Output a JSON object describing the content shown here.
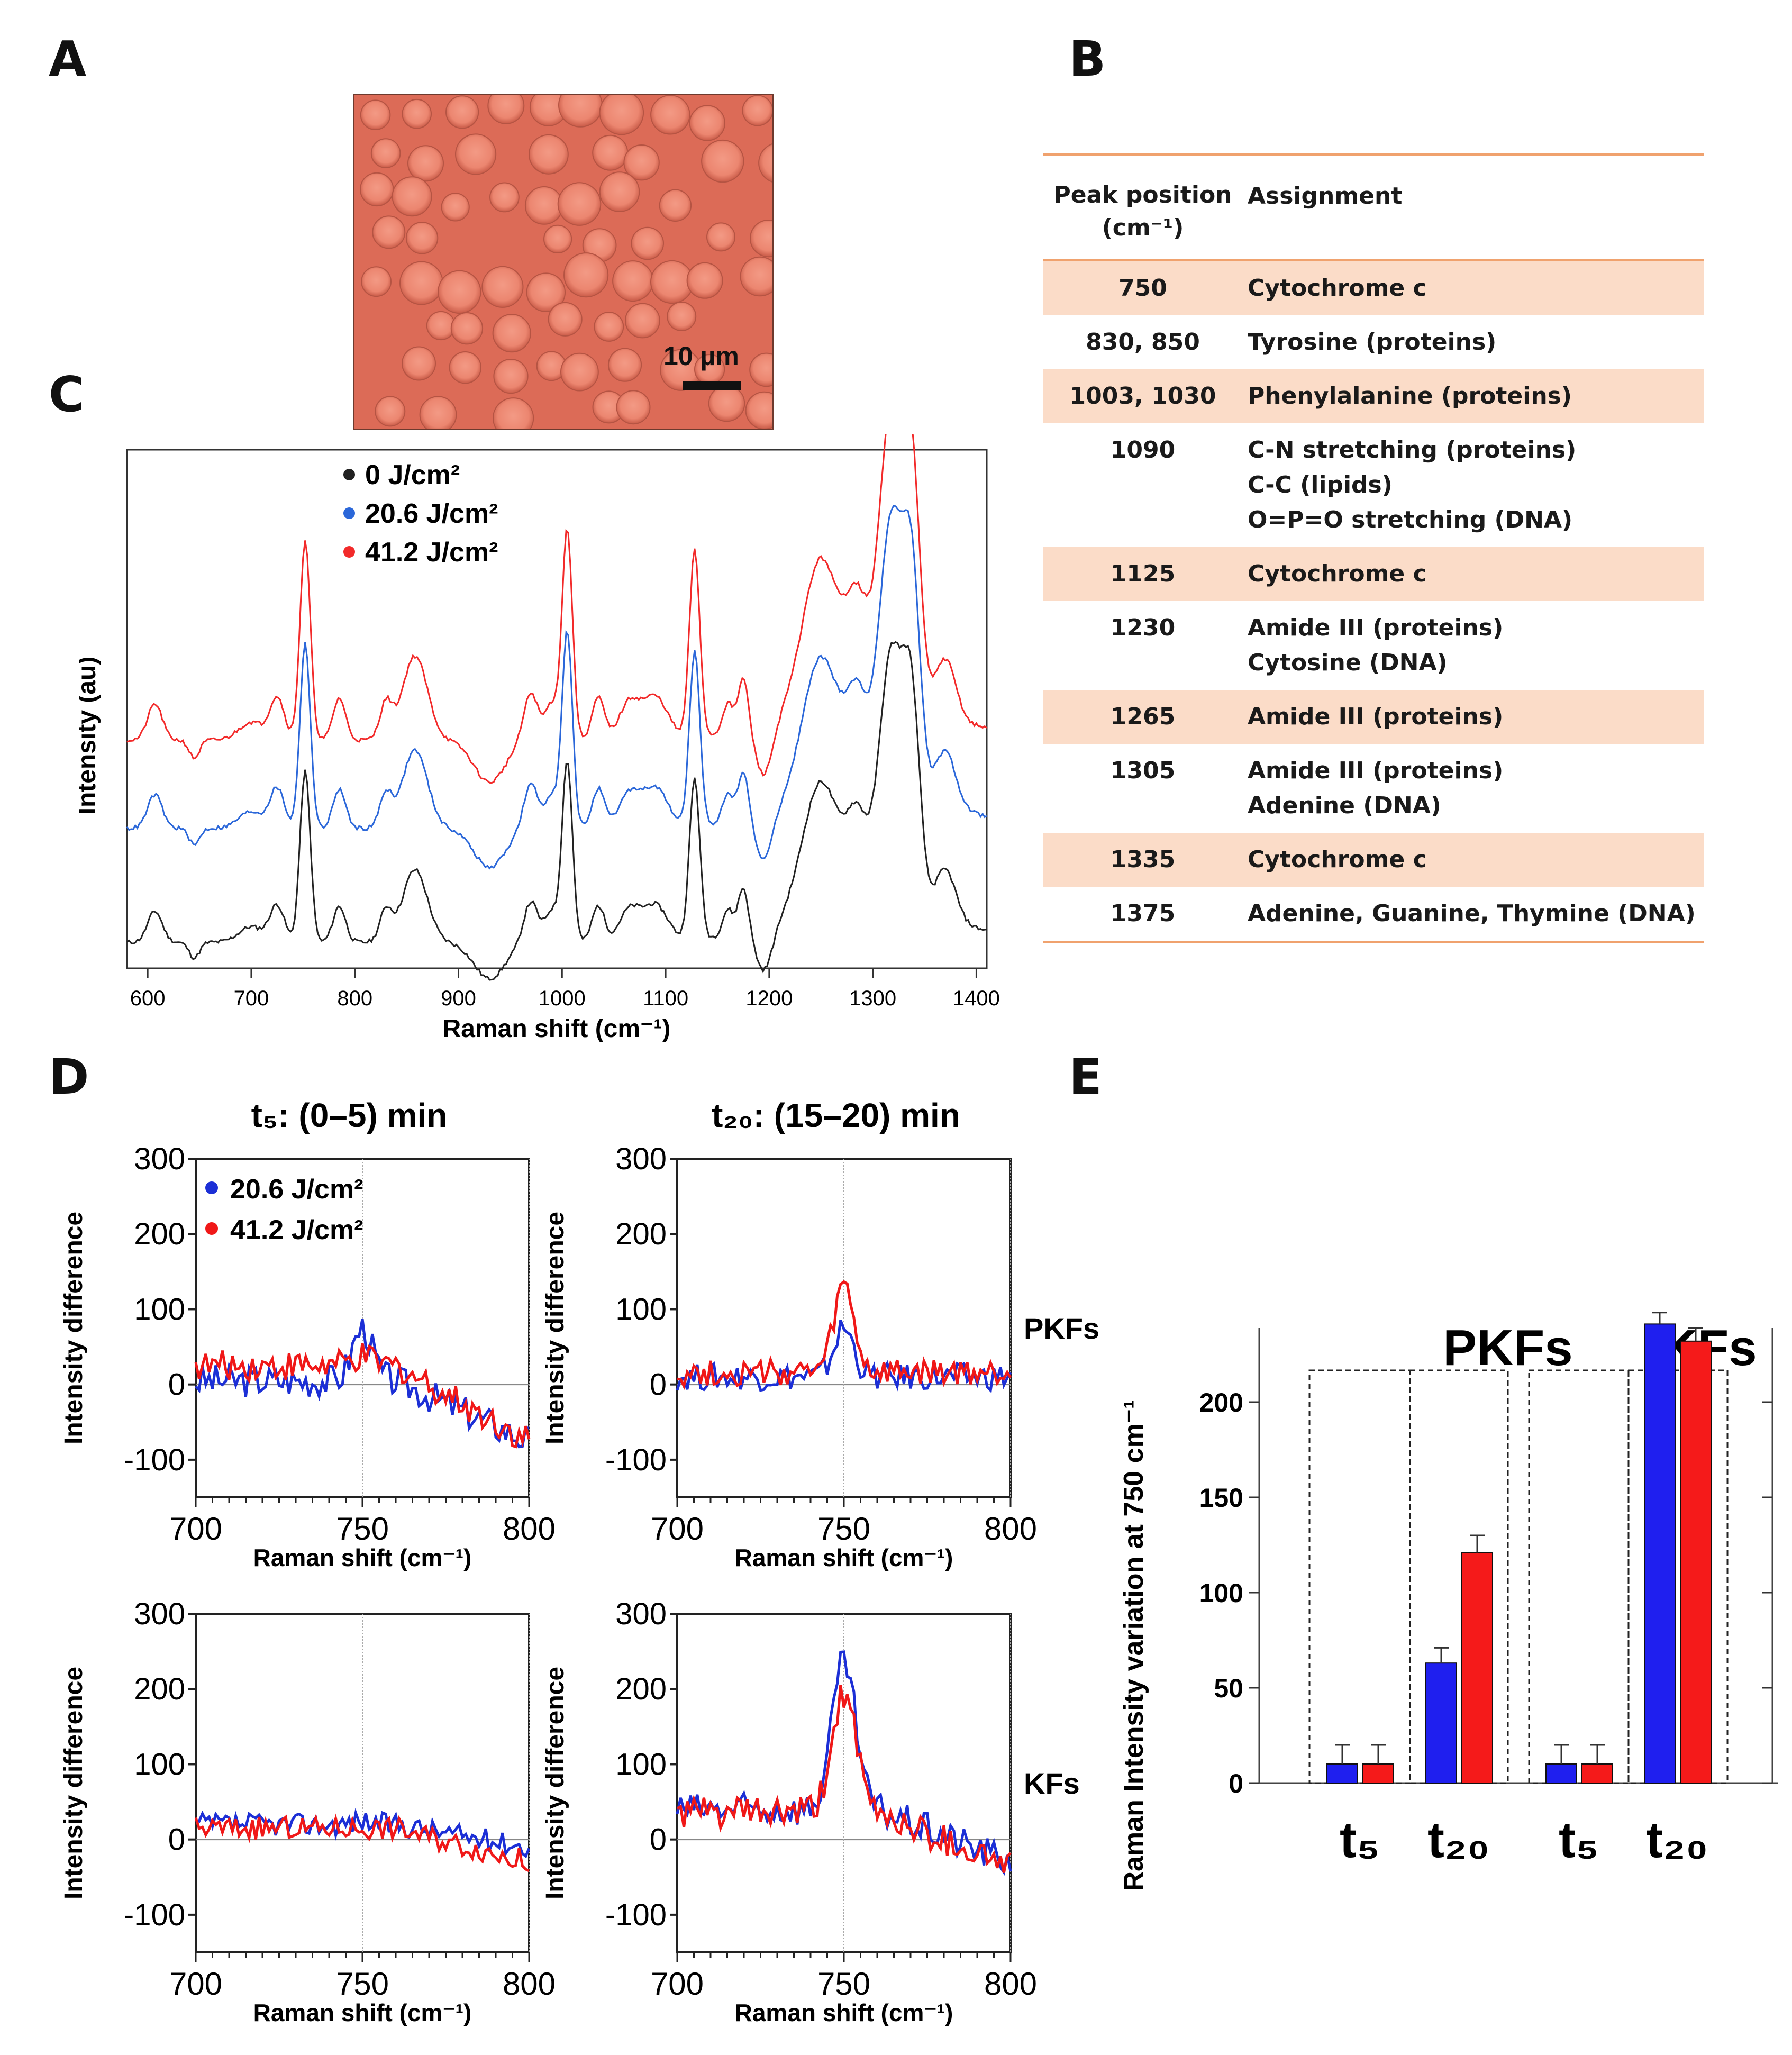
{
  "panel_labels": {
    "a": "A",
    "b": "B",
    "c": "C",
    "d": "D",
    "e": "E"
  },
  "panel_a": {
    "scale_bar_label": "10 µm",
    "image_color": "#e0705e"
  },
  "panel_b": {
    "header": {
      "col1": "Peak position",
      "col1_unit": "(cm⁻¹)",
      "col2": "Assignment"
    },
    "rows": [
      {
        "peak": "750",
        "assignment": [
          "Cytochrome c"
        ],
        "shaded": true
      },
      {
        "peak": "830, 850",
        "assignment": [
          "Tyrosine (proteins)"
        ],
        "shaded": false
      },
      {
        "peak": "1003, 1030",
        "assignment": [
          "Phenylalanine (proteins)"
        ],
        "shaded": true
      },
      {
        "peak": "1090",
        "assignment": [
          "C-N stretching (proteins)",
          "C-C (lipids)",
          "O=P=O stretching (DNA)"
        ],
        "shaded": false
      },
      {
        "peak": "1125",
        "assignment": [
          "Cytochrome c"
        ],
        "shaded": true
      },
      {
        "peak": "1230",
        "assignment": [
          "Amide III (proteins)",
          "Cytosine (DNA)"
        ],
        "shaded": false
      },
      {
        "peak": "1265",
        "assignment": [
          "Amide III (proteins)"
        ],
        "shaded": true
      },
      {
        "peak": "1305",
        "assignment": [
          "Amide III (proteins)",
          "Adenine (DNA)"
        ],
        "shaded": false
      },
      {
        "peak": "1335",
        "assignment": [
          "Cytochrome c"
        ],
        "shaded": true
      },
      {
        "peak": "1375",
        "assignment": [
          "Adenine, Guanine, Thymine (DNA)"
        ],
        "shaded": false
      }
    ]
  },
  "chart_data": [
    {
      "id": "C",
      "type": "line",
      "xlabel": "Raman shift (cm⁻¹)",
      "ylabel": "Intensity (au)",
      "xlim": [
        580,
        1410
      ],
      "xticks": [
        600,
        700,
        800,
        900,
        1000,
        1100,
        1200,
        1300,
        1400
      ],
      "ylim": [
        0,
        100
      ],
      "legend": [
        "0 J/cm²",
        "20.6 J/cm²",
        "41.2 J/cm²"
      ],
      "series": [
        {
          "name": "0 J/cm²",
          "color": "#222222",
          "offset": 5
        },
        {
          "name": "20.6 J/cm²",
          "color": "#2b67d9",
          "offset": 27
        },
        {
          "name": "41.2 J/cm²",
          "color": "#f22a2a",
          "offset": 44
        }
      ],
      "peaks": [
        {
          "x": 607,
          "h": 6,
          "w": 7
        },
        {
          "x": 645,
          "h": -3,
          "w": 5
        },
        {
          "x": 700,
          "h": 3,
          "w": 12
        },
        {
          "x": 725,
          "h": 7,
          "w": 7
        },
        {
          "x": 752,
          "h": 33,
          "w": 5
        },
        {
          "x": 785,
          "h": 7,
          "w": 6
        },
        {
          "x": 830,
          "h": 6,
          "w": 6
        },
        {
          "x": 858,
          "h": 14,
          "w": 12
        },
        {
          "x": 930,
          "h": -7,
          "w": 15
        },
        {
          "x": 970,
          "h": 8,
          "w": 7
        },
        {
          "x": 990,
          "h": 6,
          "w": 6
        },
        {
          "x": 1005,
          "h": 35,
          "w": 5
        },
        {
          "x": 1035,
          "h": 7,
          "w": 6
        },
        {
          "x": 1065,
          "h": 6,
          "w": 10
        },
        {
          "x": 1090,
          "h": 7,
          "w": 12
        },
        {
          "x": 1128,
          "h": 31,
          "w": 5
        },
        {
          "x": 1160,
          "h": 5,
          "w": 5
        },
        {
          "x": 1175,
          "h": 9,
          "w": 5
        },
        {
          "x": 1195,
          "h": -8,
          "w": 8
        },
        {
          "x": 1250,
          "h": 26,
          "w": 18
        },
        {
          "x": 1285,
          "h": 16,
          "w": 10
        },
        {
          "x": 1318,
          "h": 50,
          "w": 12
        },
        {
          "x": 1338,
          "h": 35,
          "w": 8
        },
        {
          "x": 1370,
          "h": 10,
          "w": 10
        }
      ]
    },
    {
      "id": "D",
      "type": "line",
      "subplot_titles": [
        "t₅: (0–5) min",
        "t₂₀: (15–20) min"
      ],
      "row_labels": [
        "PKFs",
        "KFs"
      ],
      "xlabel": "Raman shift (cm⁻¹)",
      "ylabel": "Intensity difference",
      "xlim": [
        700,
        800
      ],
      "ylim": [
        -150,
        300
      ],
      "xticks": [
        700,
        750,
        800
      ],
      "yticks": [
        300,
        200,
        100,
        0,
        -100
      ],
      "legend": [
        "20.6 J/cm²",
        "41.2 J/cm²"
      ],
      "series_colors": [
        "#1c2fd6",
        "#f01818"
      ],
      "subplots": [
        {
          "row": 0,
          "col": 0,
          "blue": {
            "base": 5,
            "peak": 70,
            "pw": 3,
            "trend": -80,
            "noise": 22
          },
          "red": {
            "base": 25,
            "peak": 10,
            "pw": 3,
            "trend": -100,
            "noise": 20
          }
        },
        {
          "row": 0,
          "col": 1,
          "blue": {
            "base": 10,
            "peak": 65,
            "pw": 3,
            "trend": 0,
            "noise": 18
          },
          "red": {
            "base": 15,
            "peak": 115,
            "pw": 3,
            "trend": 0,
            "noise": 18
          }
        },
        {
          "row": 1,
          "col": 0,
          "blue": {
            "base": 20,
            "peak": 5,
            "pw": 3,
            "trend": -30,
            "noise": 15
          },
          "red": {
            "base": 15,
            "peak": 0,
            "pw": 3,
            "trend": -45,
            "noise": 15
          }
        },
        {
          "row": 1,
          "col": 1,
          "blue": {
            "base": 40,
            "peak": 195,
            "pw": 3.5,
            "trend": -70,
            "noise": 22
          },
          "red": {
            "base": 35,
            "peak": 160,
            "pw": 3.5,
            "trend": -70,
            "noise": 22
          }
        }
      ]
    },
    {
      "id": "E",
      "type": "bar",
      "ylabel": "Raman Intensity variation at 750 cm⁻¹",
      "ylim": [
        0,
        250
      ],
      "yticks": [
        0,
        50,
        100,
        150,
        200
      ],
      "groups": [
        "PKFs",
        "KFs"
      ],
      "categories": [
        "t₅",
        "t₂₀",
        "t₅",
        "t₂₀"
      ],
      "series": [
        {
          "name": "20.6 J/cm²",
          "color": "#1f1fef",
          "values": [
            10,
            63,
            10,
            241
          ],
          "errors": [
            10,
            8,
            10,
            6
          ]
        },
        {
          "name": "41.2 J/cm²",
          "color": "#f51a1a",
          "values": [
            10,
            121,
            10,
            232
          ],
          "errors": [
            10,
            9,
            10,
            7
          ]
        }
      ]
    }
  ]
}
